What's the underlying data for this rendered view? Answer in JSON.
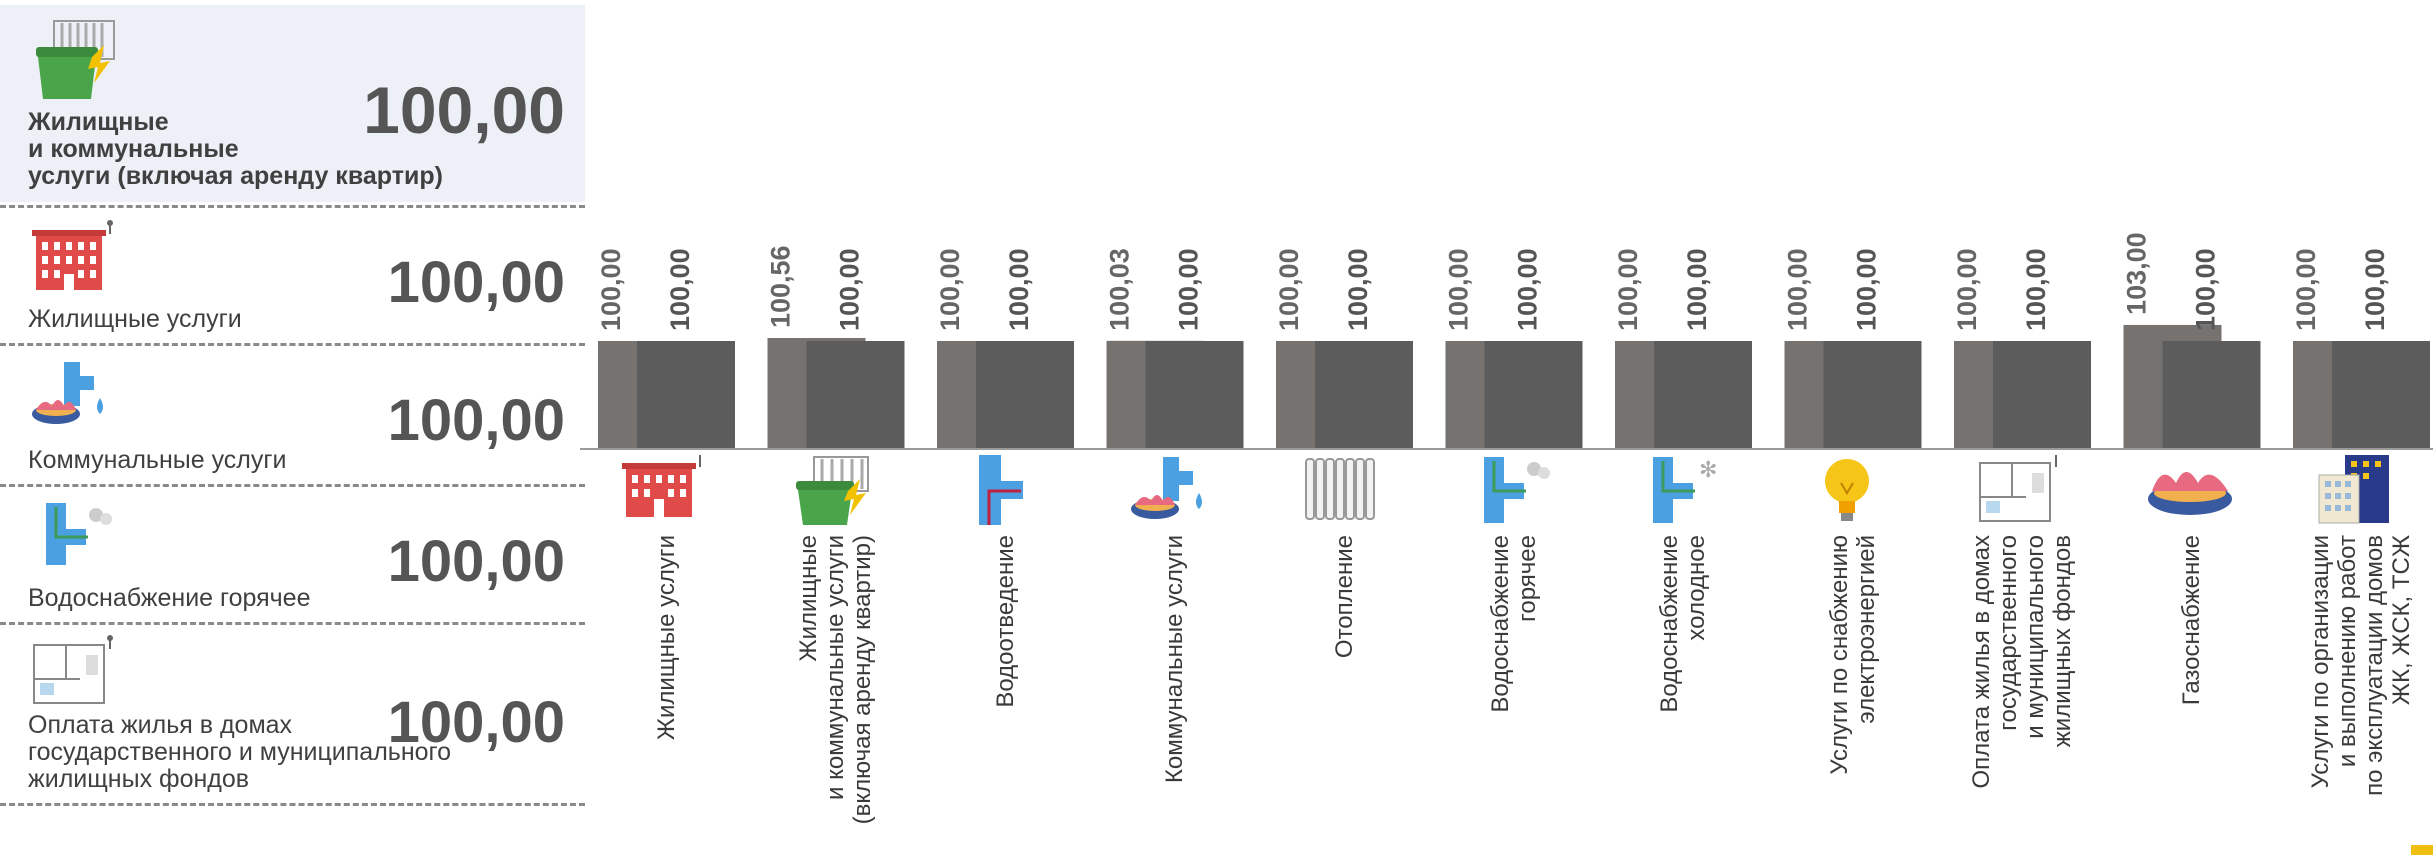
{
  "summary": [
    {
      "label": "Жилищные\nи коммунальные\nуслуги (включая аренду квартир)",
      "value": "100,00",
      "icon": "garbage-bin-radiator-icon"
    },
    {
      "label": "Жилищные услуги",
      "value": "100,00",
      "icon": "apartment-building-icon"
    },
    {
      "label": "Коммунальные услуги",
      "value": "100,00",
      "icon": "pipe-gas-burner-icon"
    },
    {
      "label": "Водоснабжение горячее",
      "value": "100,00",
      "icon": "hot-water-pipe-icon"
    },
    {
      "label": "Оплата жилья в домах\nгосударственного и муниципального\nжилищных фондов",
      "value": "100,00",
      "icon": "floor-plan-icon"
    }
  ],
  "chart_data": {
    "type": "bar",
    "categories": [
      "Жилищные услуги",
      "Жилищные\nи коммунальные услуги\n(включая аренду квартир)",
      "Водоотведение",
      "Коммунальные услуги",
      "Отопление",
      "Водоснабжение\nгорячее",
      "Водоснабжение\nхолодное",
      "Услуги по снабжению\nэлектроэнергией",
      "Оплата жилья в домах\nгосударственного\nи муниципального\nжилищных фондов",
      "Газоснабжение",
      "Услуги по организации\nи выполнению работ\nпо эксплуатации домов\nЖК, ЖСК, ТСЖ"
    ],
    "series": [
      {
        "values": [
          100.0,
          100.56,
          100.0,
          100.03,
          100.0,
          100.0,
          100.0,
          100.0,
          100.0,
          103.0,
          100.0
        ],
        "labels": [
          "100,00",
          "100,56",
          "100,00",
          "100,03",
          "100,00",
          "100,00",
          "100,00",
          "100,00",
          "100,00",
          "103,00",
          "100,00"
        ]
      },
      {
        "values": [
          100.0,
          100.0,
          100.0,
          100.0,
          100.0,
          100.0,
          100.0,
          100.0,
          100.0,
          100.0,
          100.0
        ],
        "labels": [
          "100,00",
          "100,00",
          "100,00",
          "100,00",
          "100,00",
          "100,00",
          "100,00",
          "100,00",
          "100,00",
          "100,00",
          "100,00"
        ]
      }
    ],
    "icons": [
      "apartment-building-icon",
      "garbage-bin-radiator-icon",
      "drain-pipe-icon",
      "pipe-gas-burner-icon",
      "radiator-icon",
      "hot-water-pipe-icon",
      "cold-water-pipe-icon",
      "light-bulb-icon",
      "floor-plan-icon",
      "gas-burner-icon",
      "office-building-icon"
    ],
    "ylim": [
      0,
      104.0
    ],
    "colors": {
      "series1": "#767270",
      "series2": "#5c5c5c",
      "baseline": "#9a9a9a"
    },
    "grid": false,
    "legend": "none"
  }
}
